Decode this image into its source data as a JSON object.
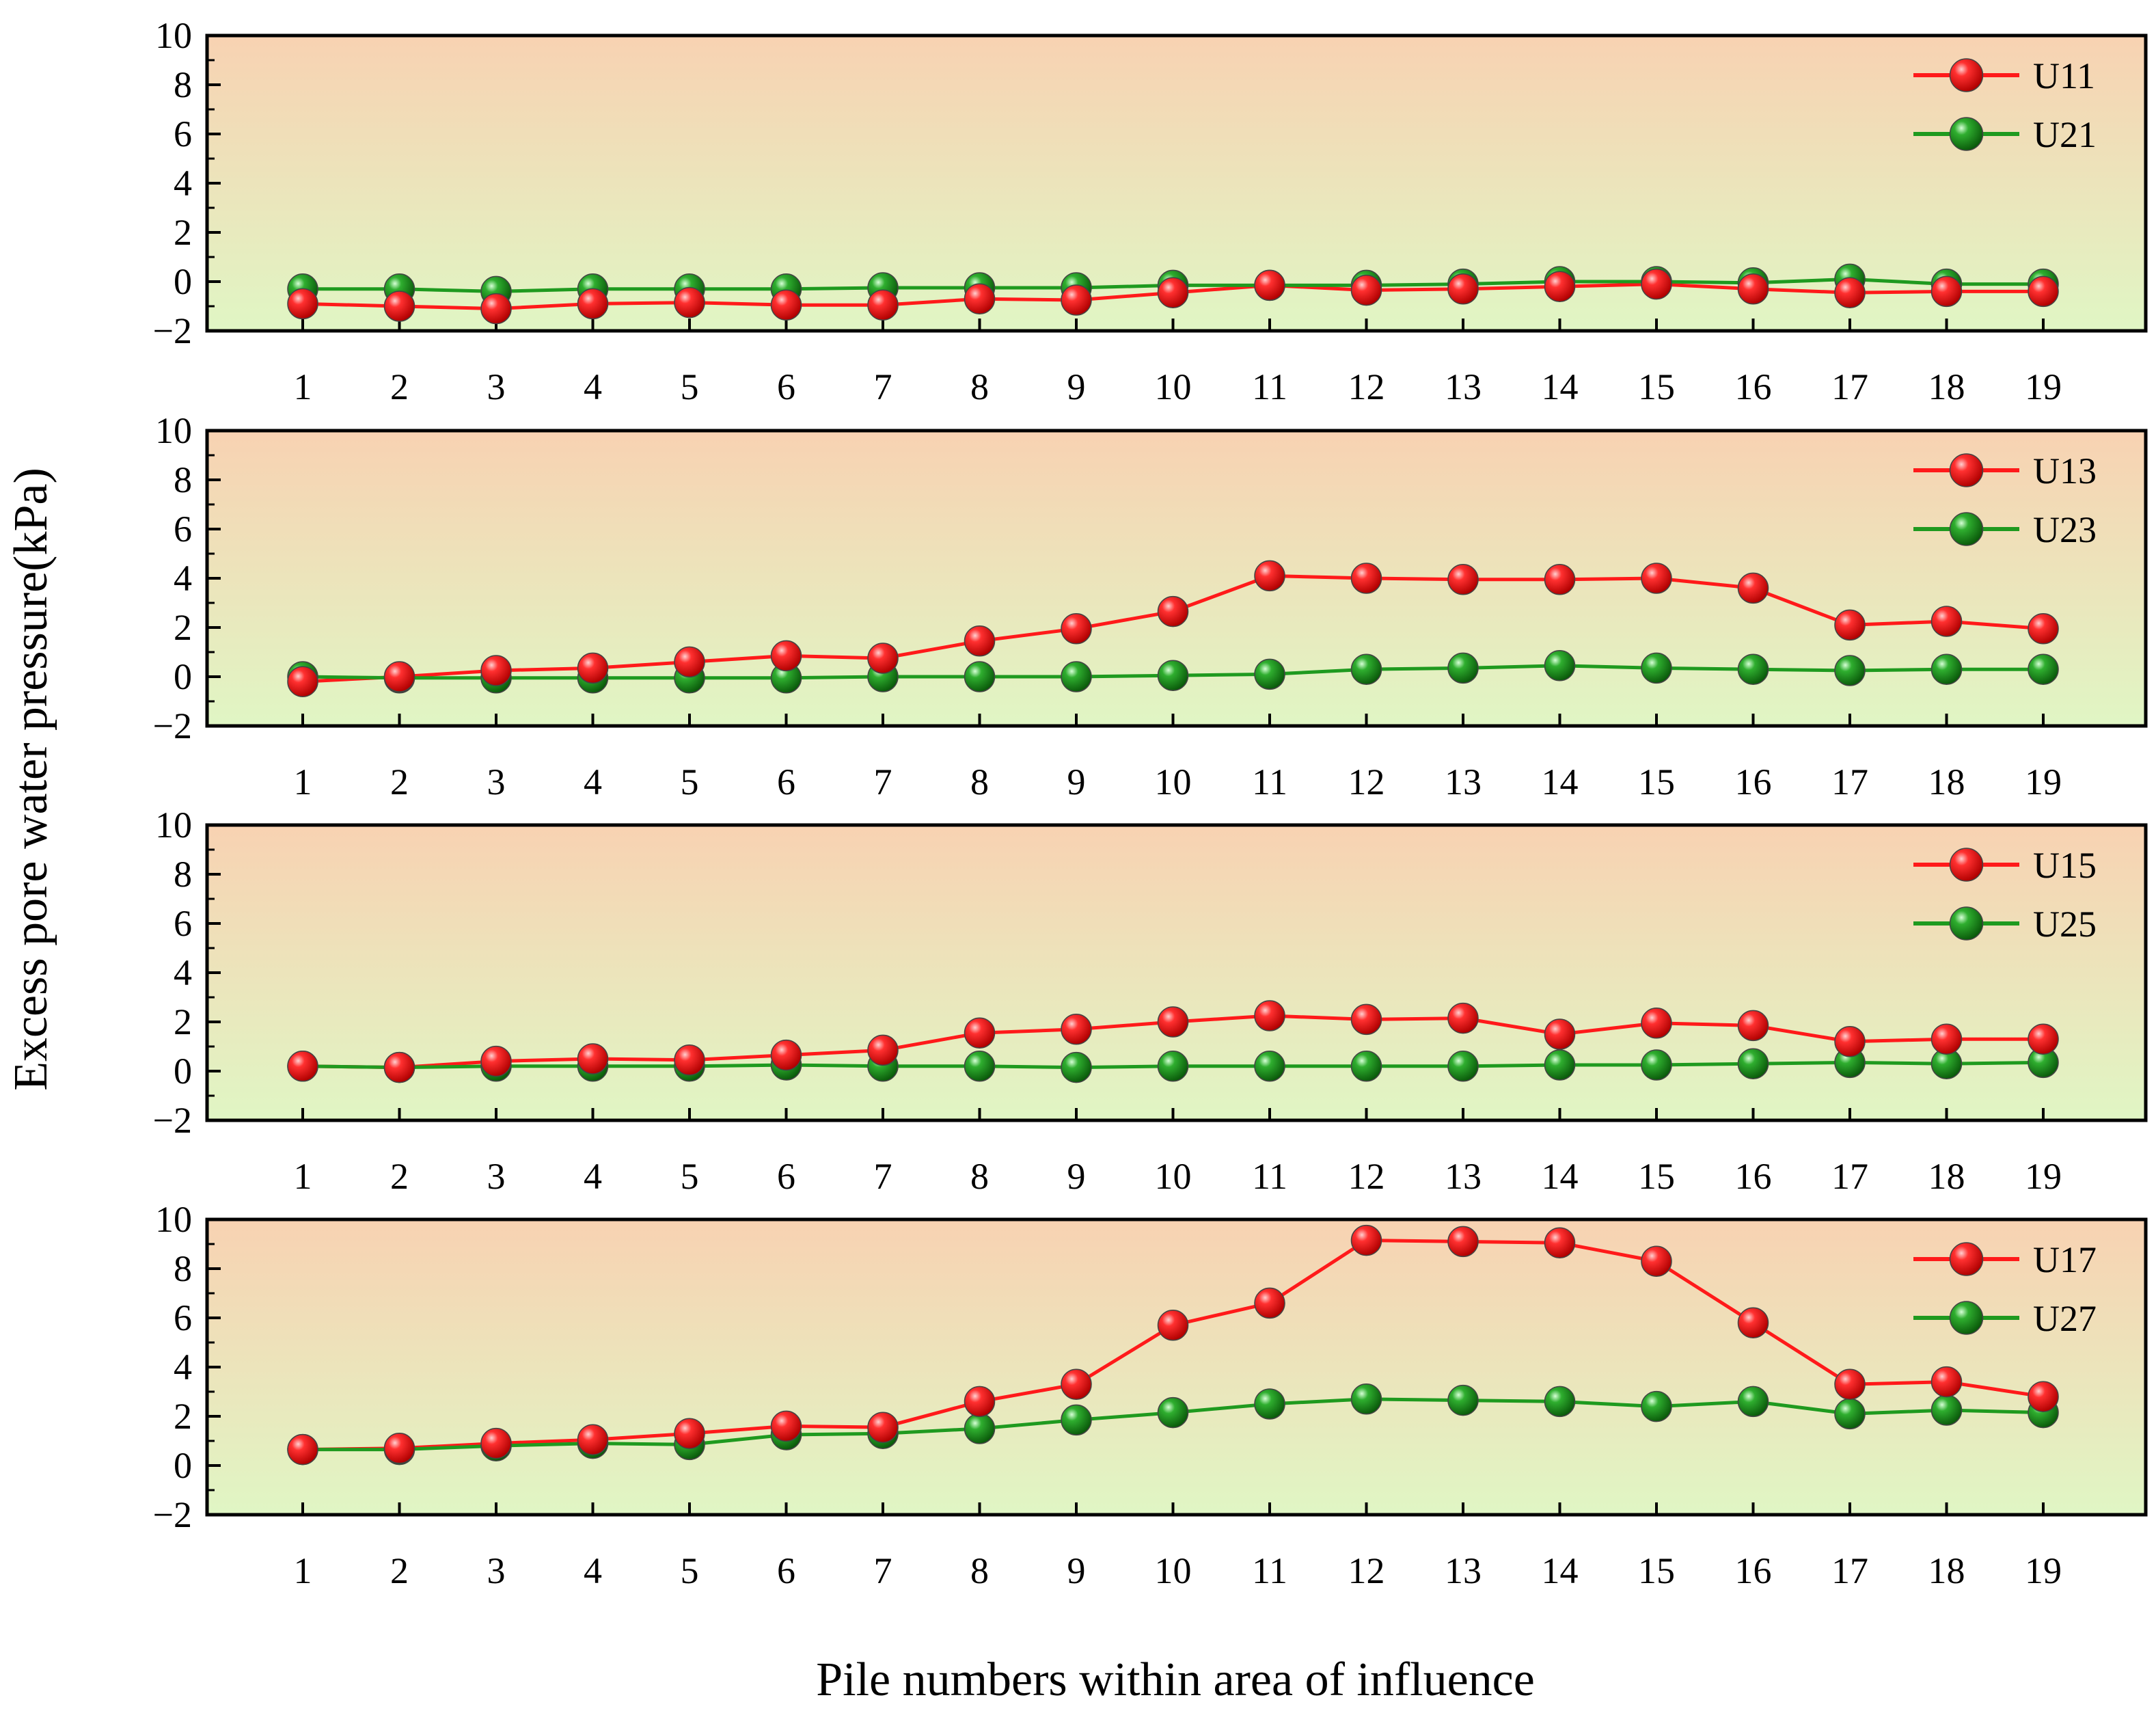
{
  "figure": {
    "ylabel": "Excess pore water pressure(kPa)",
    "xlabel": "Pile numbers within area of influence",
    "colors": {
      "red_series": "#ff1a1a",
      "green_series": "#1f9a1f",
      "bg_top": "#f8d2b2",
      "bg_bottom": "#e0f6c4",
      "axis": "#000000"
    }
  },
  "chart_data": [
    {
      "type": "line",
      "categories": [
        "1",
        "2",
        "3",
        "4",
        "5",
        "6",
        "7",
        "8",
        "9",
        "10",
        "11",
        "12",
        "13",
        "14",
        "15",
        "16",
        "17",
        "18",
        "19"
      ],
      "ylim": [
        -2,
        10
      ],
      "yticks": [
        "10",
        "8",
        "6",
        "4",
        "2",
        "0",
        "−2"
      ],
      "series": [
        {
          "name": "U11",
          "color": "red",
          "values": [
            -0.9,
            -1.0,
            -1.1,
            -0.9,
            -0.85,
            -0.95,
            -0.95,
            -0.7,
            -0.75,
            -0.45,
            -0.15,
            -0.35,
            -0.3,
            -0.2,
            -0.1,
            -0.3,
            -0.45,
            -0.4,
            -0.4
          ]
        },
        {
          "name": "U21",
          "color": "green",
          "values": [
            -0.3,
            -0.3,
            -0.4,
            -0.3,
            -0.3,
            -0.3,
            -0.25,
            -0.25,
            -0.25,
            -0.15,
            -0.15,
            -0.15,
            -0.1,
            0.0,
            0.0,
            -0.05,
            0.1,
            -0.1,
            -0.1
          ]
        }
      ]
    },
    {
      "type": "line",
      "categories": [
        "1",
        "2",
        "3",
        "4",
        "5",
        "6",
        "7",
        "8",
        "9",
        "10",
        "11",
        "12",
        "13",
        "14",
        "15",
        "16",
        "17",
        "18",
        "19"
      ],
      "ylim": [
        -2,
        10
      ],
      "yticks": [
        "10",
        "8",
        "6",
        "4",
        "2",
        "0",
        "−2"
      ],
      "series": [
        {
          "name": "U13",
          "color": "red",
          "values": [
            -0.2,
            0.0,
            0.25,
            0.35,
            0.6,
            0.85,
            0.75,
            1.45,
            1.95,
            2.65,
            4.1,
            4.0,
            3.95,
            3.95,
            4.0,
            3.6,
            2.1,
            2.25,
            1.95
          ]
        },
        {
          "name": "U23",
          "color": "green",
          "values": [
            0.0,
            -0.05,
            -0.05,
            -0.05,
            -0.05,
            -0.05,
            0.0,
            0.0,
            0.0,
            0.05,
            0.1,
            0.3,
            0.35,
            0.45,
            0.35,
            0.3,
            0.25,
            0.3,
            0.3
          ]
        }
      ]
    },
    {
      "type": "line",
      "categories": [
        "1",
        "2",
        "3",
        "4",
        "5",
        "6",
        "7",
        "8",
        "9",
        "10",
        "11",
        "12",
        "13",
        "14",
        "15",
        "16",
        "17",
        "18",
        "19"
      ],
      "ylim": [
        -2,
        10
      ],
      "yticks": [
        "10",
        "8",
        "6",
        "4",
        "2",
        "0",
        "−2"
      ],
      "series": [
        {
          "name": "U15",
          "color": "red",
          "values": [
            0.2,
            0.15,
            0.4,
            0.5,
            0.45,
            0.65,
            0.85,
            1.55,
            1.7,
            2.0,
            2.25,
            2.1,
            2.15,
            1.5,
            1.95,
            1.85,
            1.2,
            1.3,
            1.3
          ]
        },
        {
          "name": "U25",
          "color": "green",
          "values": [
            0.2,
            0.15,
            0.2,
            0.2,
            0.2,
            0.25,
            0.2,
            0.2,
            0.15,
            0.2,
            0.2,
            0.2,
            0.2,
            0.25,
            0.25,
            0.3,
            0.35,
            0.3,
            0.35
          ]
        }
      ]
    },
    {
      "type": "line",
      "categories": [
        "1",
        "2",
        "3",
        "4",
        "5",
        "6",
        "7",
        "8",
        "9",
        "10",
        "11",
        "12",
        "13",
        "14",
        "15",
        "16",
        "17",
        "18",
        "19"
      ],
      "ylim": [
        -2,
        10
      ],
      "yticks": [
        "10",
        "8",
        "6",
        "4",
        "2",
        "0",
        "−2"
      ],
      "series": [
        {
          "name": "U17",
          "color": "red",
          "values": [
            0.65,
            0.7,
            0.9,
            1.05,
            1.3,
            1.6,
            1.55,
            2.6,
            3.3,
            5.7,
            6.6,
            9.15,
            9.1,
            9.05,
            8.3,
            5.8,
            3.3,
            3.4,
            2.8
          ]
        },
        {
          "name": "U27",
          "color": "green",
          "values": [
            0.65,
            0.65,
            0.8,
            0.9,
            0.85,
            1.25,
            1.3,
            1.5,
            1.85,
            2.15,
            2.5,
            2.7,
            2.65,
            2.6,
            2.4,
            2.6,
            2.1,
            2.25,
            2.15
          ]
        }
      ]
    }
  ]
}
